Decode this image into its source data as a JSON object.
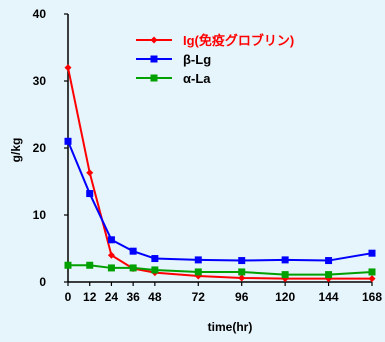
{
  "chart_data": {
    "type": "line",
    "xlabel": "time(hr)",
    "ylabel": "g/kg",
    "x": [
      0,
      12,
      24,
      36,
      48,
      72,
      96,
      120,
      144,
      168
    ],
    "xticks": [
      0,
      12,
      24,
      36,
      48,
      72,
      96,
      120,
      144,
      168
    ],
    "yticks": [
      0,
      10,
      20,
      30,
      40
    ],
    "xlim": [
      0,
      168
    ],
    "ylim": [
      0,
      40
    ],
    "grid": false,
    "legend_position": "top-right",
    "series": [
      {
        "name": "Ig(免疫グロブリン)",
        "color": "#ff0000",
        "marker": "diamond",
        "values": [
          32.0,
          16.3,
          4.0,
          2.0,
          1.4,
          0.9,
          0.6,
          0.5,
          0.5,
          0.5
        ]
      },
      {
        "name": "β-Lg",
        "color": "#0000ff",
        "marker": "square",
        "values": [
          21.0,
          13.2,
          6.3,
          4.6,
          3.5,
          3.3,
          3.2,
          3.3,
          3.2,
          4.3
        ]
      },
      {
        "name": "α-La",
        "color": "#00a000",
        "marker": "square",
        "values": [
          2.5,
          2.5,
          2.1,
          2.1,
          1.8,
          1.5,
          1.5,
          1.1,
          1.1,
          1.5
        ]
      }
    ]
  }
}
